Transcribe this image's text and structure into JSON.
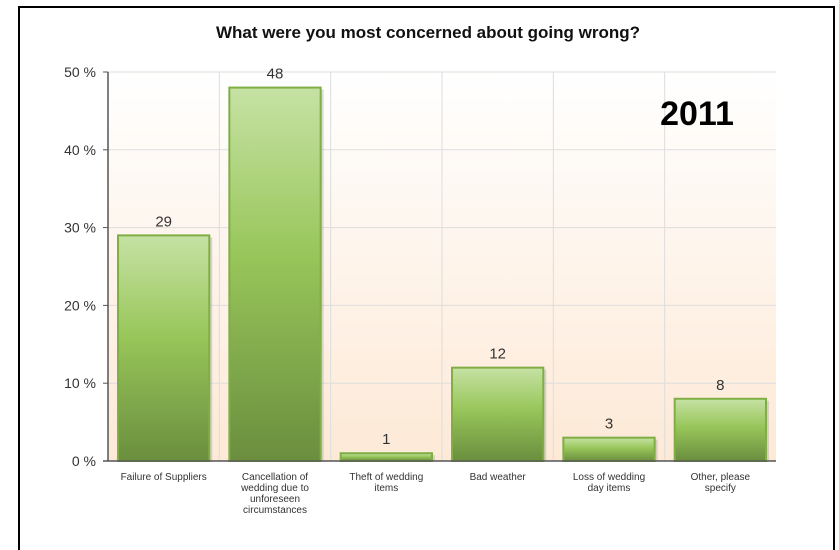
{
  "chart_data": {
    "type": "bar",
    "title": "What were you most concerned about going wrong?",
    "annotation": "2011",
    "categories": [
      [
        "Failure of Suppliers"
      ],
      [
        "Cancellation of",
        "wedding due to",
        "unforeseen",
        "circumstances"
      ],
      [
        "Theft of wedding",
        "items"
      ],
      [
        "Bad weather"
      ],
      [
        "Loss of wedding",
        "day items"
      ],
      [
        "Other, please",
        "specify"
      ]
    ],
    "values": [
      29,
      48,
      1,
      12,
      3,
      8
    ],
    "ylim": [
      0,
      50
    ],
    "yticks": [
      "0 %",
      "10 %",
      "20 %",
      "30 %",
      "40 %",
      "50 %"
    ],
    "xlabel": "",
    "ylabel": "",
    "grid": true,
    "colors": {
      "bar_light": "#c6e2a4",
      "bar_mid": "#98c65a",
      "bar_dark": "#6a8e3e",
      "bar_border": "#7fae45",
      "plot_top": "#ffffff",
      "plot_bottom": "#fde9d6",
      "grid": "#dddddd",
      "axis": "#555555"
    }
  }
}
